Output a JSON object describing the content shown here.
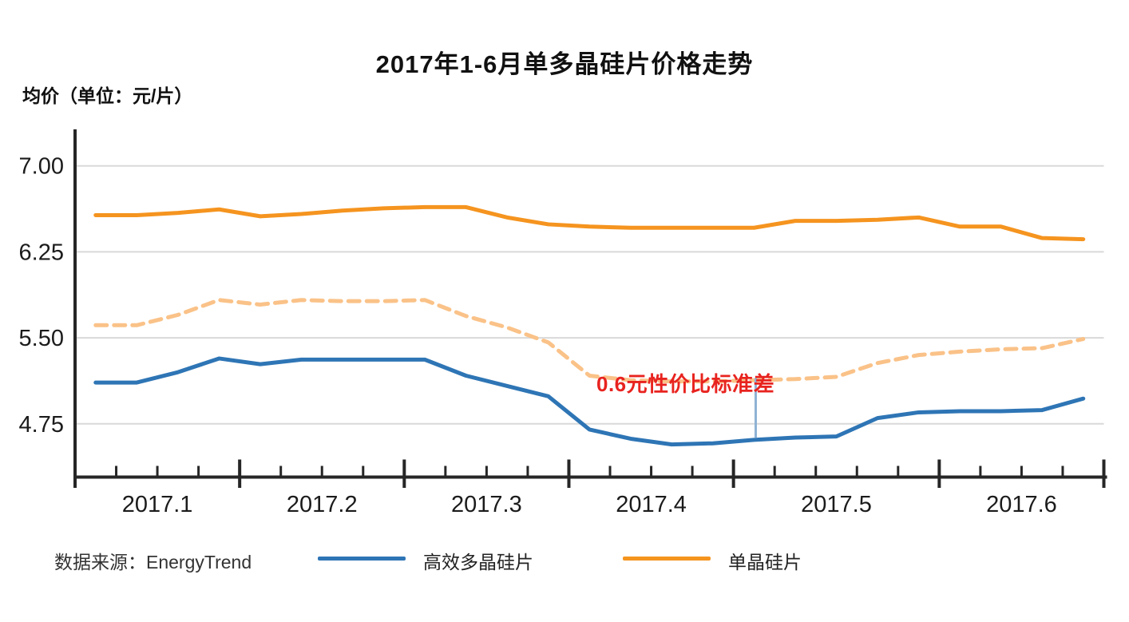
{
  "title": "2017年1-6月单多晶硅片价格走势",
  "y_axis_unit_label": "均价（单位：元/片）",
  "footer": {
    "source": "数据来源：EnergyTrend"
  },
  "legend": {
    "items": [
      {
        "label": "高效多晶硅片",
        "color": "#2E75B5"
      },
      {
        "label": "单晶硅片",
        "color": "#F5941F"
      }
    ]
  },
  "colors": {
    "axis": "#262626",
    "tick_label": "#1b1b1b",
    "gridline": "#D9D9D9",
    "mono_line": "#F5941F",
    "multi_line": "#2E75B5",
    "dashed_reference_line": "#FAC288",
    "annotation_red": "#E8231F",
    "callout_blue": "#8FB2D5"
  },
  "chart_data": {
    "type": "line",
    "title": "2017年1-6月单多晶硅片价格走势",
    "ylabel": "均价（单位：元/片）",
    "grid": "horizontal",
    "legend_position": "bottom",
    "x_tick_labels": [
      "2017.1",
      "2017.2",
      "2017.3",
      "2017.4",
      "2017.5",
      "2017.6"
    ],
    "weeks_per_month": [
      4,
      4,
      4,
      4,
      5,
      4
    ],
    "y_ticks": [
      {
        "label": "7.00",
        "value": 7.0
      },
      {
        "label": "6.25",
        "value": 6.25
      },
      {
        "label": "5.50",
        "value": 5.5
      },
      {
        "label": "4.75",
        "value": 4.75
      }
    ],
    "ylim": [
      4.29,
      7.32
    ],
    "series": [
      {
        "name": "单晶硅片",
        "color": "#F5941F",
        "dashed": false,
        "values": [
          6.57,
          6.57,
          6.59,
          6.62,
          6.56,
          6.58,
          6.61,
          6.63,
          6.64,
          6.64,
          6.55,
          6.49,
          6.47,
          6.46,
          6.46,
          6.46,
          6.46,
          6.52,
          6.52,
          6.53,
          6.55,
          6.47,
          6.47,
          6.37,
          6.36
        ]
      },
      {
        "name": "高效多晶硅片",
        "color": "#2E75B5",
        "dashed": false,
        "values": [
          5.11,
          5.11,
          5.2,
          5.32,
          5.27,
          5.31,
          5.31,
          5.31,
          5.31,
          5.17,
          5.08,
          4.99,
          4.7,
          4.62,
          4.57,
          4.58,
          4.61,
          4.63,
          4.64,
          4.8,
          4.85,
          4.86,
          4.86,
          4.87,
          4.97
        ]
      },
      {
        "name": "dashed-reference",
        "color": "#FAC288",
        "dashed": true,
        "values": [
          5.61,
          5.61,
          5.7,
          5.83,
          5.79,
          5.83,
          5.82,
          5.82,
          5.83,
          5.69,
          5.59,
          5.46,
          5.17,
          5.13,
          5.12,
          5.12,
          5.13,
          5.14,
          5.16,
          5.28,
          5.35,
          5.38,
          5.4,
          5.41,
          5.49
        ]
      }
    ],
    "annotation": {
      "text": "0.6元性价比标准差",
      "color": "#E8231F",
      "callout_x_index": 16.54,
      "callout_from_value": 5.15,
      "callout_to_value": 4.63,
      "callout_color": "#8FB2D5"
    }
  }
}
